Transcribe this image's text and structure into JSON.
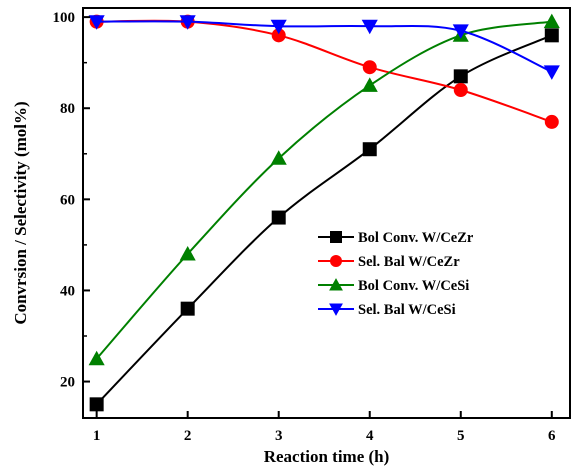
{
  "chart_data": {
    "type": "line",
    "title": "",
    "xlabel": "Reaction time (h)",
    "ylabel": "Convrsion / Selectivity (mol%)",
    "x": [
      1,
      2,
      3,
      4,
      5,
      6
    ],
    "xlim": [
      0.85,
      6.2
    ],
    "ylim": [
      12,
      102
    ],
    "xticks": [
      "1",
      "2",
      "3",
      "4",
      "5",
      "6"
    ],
    "yticks": [
      "20",
      "40",
      "60",
      "80",
      "100"
    ],
    "grid": false,
    "legend_position": "center-right",
    "series": [
      {
        "name": "Bol Conv. W/CeZr",
        "values": [
          15,
          36,
          56,
          71,
          87,
          96
        ],
        "color": "#000000",
        "marker": "square"
      },
      {
        "name": "Sel. Bal  W/CeZr",
        "values": [
          99,
          99,
          96,
          89,
          84,
          77
        ],
        "color": "#ff0000",
        "marker": "circle"
      },
      {
        "name": "Bol Conv. W/CeSi",
        "values": [
          25,
          48,
          69,
          85,
          96,
          99
        ],
        "color": "#008000",
        "marker": "triangle-up"
      },
      {
        "name": "Sel. Bal  W/CeSi",
        "values": [
          99,
          99,
          98,
          98,
          97,
          88
        ],
        "color": "#0000ff",
        "marker": "triangle-down"
      }
    ]
  }
}
